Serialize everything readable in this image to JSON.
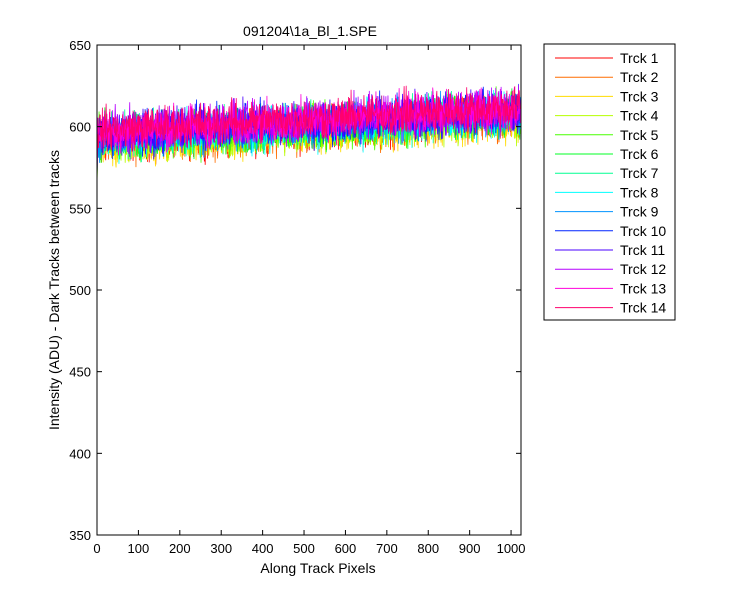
{
  "chart_data": {
    "type": "line",
    "title": "091204\\1a_Bl_1.SPE",
    "xlabel": "Along Track Pixels",
    "ylabel": "Intensity (ADU) - Dark Tracks between tracks",
    "xlim": [
      0,
      1024
    ],
    "ylim": [
      350,
      650
    ],
    "x_ticks": [
      0,
      100,
      200,
      300,
      400,
      500,
      600,
      700,
      800,
      900,
      1000
    ],
    "y_ticks": [
      350,
      400,
      450,
      500,
      550,
      600,
      650
    ],
    "grid": false,
    "legend_position": "outside-right",
    "series": [
      {
        "name": "Trck 1",
        "color": "#ff0000",
        "start": 591,
        "end": 606
      },
      {
        "name": "Trck 2",
        "color": "#ff6d00",
        "start": 590,
        "end": 605
      },
      {
        "name": "Trck 3",
        "color": "#ffdb00",
        "start": 589,
        "end": 604
      },
      {
        "name": "Trck 4",
        "color": "#b6ff00",
        "start": 590,
        "end": 605
      },
      {
        "name": "Trck 5",
        "color": "#49ff00",
        "start": 592,
        "end": 607
      },
      {
        "name": "Trck 6",
        "color": "#00ff24",
        "start": 593,
        "end": 608
      },
      {
        "name": "Trck 7",
        "color": "#00ff92",
        "start": 594,
        "end": 609
      },
      {
        "name": "Trck 8",
        "color": "#00ffff",
        "start": 593,
        "end": 608
      },
      {
        "name": "Trck 9",
        "color": "#0092ff",
        "start": 594,
        "end": 609
      },
      {
        "name": "Trck 10",
        "color": "#0024ff",
        "start": 595,
        "end": 610
      },
      {
        "name": "Trck 11",
        "color": "#4900ff",
        "start": 596,
        "end": 610
      },
      {
        "name": "Trck 12",
        "color": "#b600ff",
        "start": 597,
        "end": 611
      },
      {
        "name": "Trck 13",
        "color": "#ff00db",
        "start": 597,
        "end": 611
      },
      {
        "name": "Trck 14",
        "color": "#ff006d",
        "start": 598,
        "end": 612
      }
    ],
    "noise_amplitude": 8,
    "point_count": 1024
  }
}
